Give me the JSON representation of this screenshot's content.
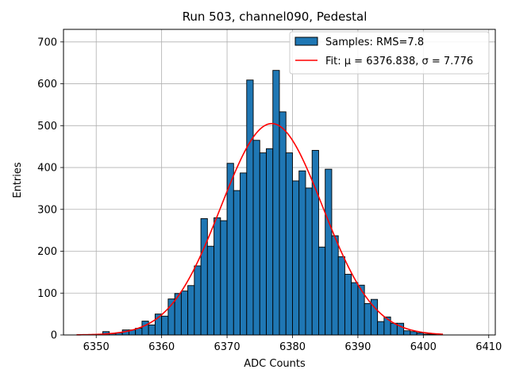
{
  "chart_data": {
    "type": "bar",
    "title": "Run 503, channel090, Pedestal",
    "xlabel": "ADC Counts",
    "ylabel": "Entries",
    "xlim": [
      6345,
      6411
    ],
    "ylim": [
      0,
      730
    ],
    "x_ticks": [
      6350,
      6360,
      6370,
      6380,
      6390,
      6400,
      6410
    ],
    "y_ticks": [
      0,
      100,
      200,
      300,
      400,
      500,
      600,
      700
    ],
    "grid": true,
    "legend_position": "top-right",
    "bar_color": "#1f77b4",
    "fit_color": "#ff0000",
    "histogram": {
      "name": "Samples: RMS=7.8",
      "bin_width": 1,
      "bin_left_edges": [
        6351,
        6352,
        6353,
        6354,
        6355,
        6356,
        6357,
        6358,
        6359,
        6360,
        6361,
        6362,
        6363,
        6364,
        6365,
        6366,
        6367,
        6368,
        6369,
        6370,
        6371,
        6372,
        6373,
        6374,
        6375,
        6376,
        6377,
        6378,
        6379,
        6380,
        6381,
        6382,
        6383,
        6384,
        6385,
        6386,
        6387,
        6388,
        6389,
        6390,
        6391,
        6392,
        6393,
        6394,
        6395,
        6396,
        6397,
        6398,
        6399,
        6400,
        6401
      ],
      "counts": [
        8,
        3,
        5,
        12,
        12,
        16,
        33,
        24,
        50,
        45,
        86,
        99,
        105,
        118,
        165,
        278,
        212,
        280,
        273,
        410,
        345,
        387,
        609,
        465,
        435,
        445,
        632,
        533,
        435,
        368,
        392,
        351,
        441,
        210,
        396,
        237,
        187,
        145,
        125,
        119,
        75,
        85,
        32,
        43,
        28,
        28,
        10,
        8,
        5,
        2,
        2
      ]
    },
    "fit": {
      "name_prefix": "Fit: ",
      "mu_label": "μ = 6376.838",
      "separator": ", ",
      "sigma_label": "σ = 7.776",
      "mu": 6376.838,
      "sigma": 7.776,
      "amplitude": 505,
      "x_range": [
        6347,
        6403
      ]
    }
  }
}
